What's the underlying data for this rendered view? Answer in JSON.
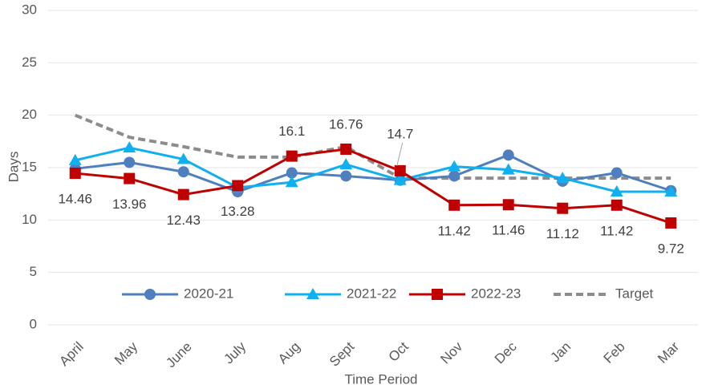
{
  "chart_data": {
    "type": "line",
    "y_label": "Days",
    "x_label": "Time Period",
    "categories": [
      "April",
      "May",
      "June",
      "July",
      "Aug",
      "Sept",
      "Oct",
      "Nov",
      "Dec",
      "Jan",
      "Feb",
      "Mar"
    ],
    "series": [
      {
        "name": "2020-21",
        "color": "#4f7fbf",
        "marker": "circle",
        "values": [
          14.9,
          15.5,
          14.6,
          12.7,
          14.5,
          14.2,
          13.8,
          14.2,
          16.2,
          13.7,
          14.5,
          12.8
        ]
      },
      {
        "name": "2021-22",
        "color": "#10b0f0",
        "marker": "triangle",
        "values": [
          15.7,
          16.9,
          15.8,
          13.1,
          13.6,
          15.3,
          13.8,
          15.1,
          14.8,
          14.0,
          12.7,
          12.7
        ]
      },
      {
        "name": "2022-23",
        "color": "#c00000",
        "marker": "square",
        "data_labels": true,
        "values": [
          14.46,
          13.96,
          12.43,
          13.28,
          16.1,
          16.76,
          14.7,
          11.42,
          11.46,
          11.12,
          11.42,
          9.72
        ]
      },
      {
        "name": "Target",
        "color": "#8c8c8c",
        "dashed": true,
        "values": [
          20,
          17.9,
          17,
          16,
          16,
          17,
          14,
          14,
          14,
          14,
          14,
          14
        ]
      }
    ],
    "ylim": [
      0,
      30
    ],
    "yticks": [
      0,
      5,
      10,
      15,
      20,
      25,
      30
    ],
    "grid": true,
    "legend": "bottom"
  }
}
